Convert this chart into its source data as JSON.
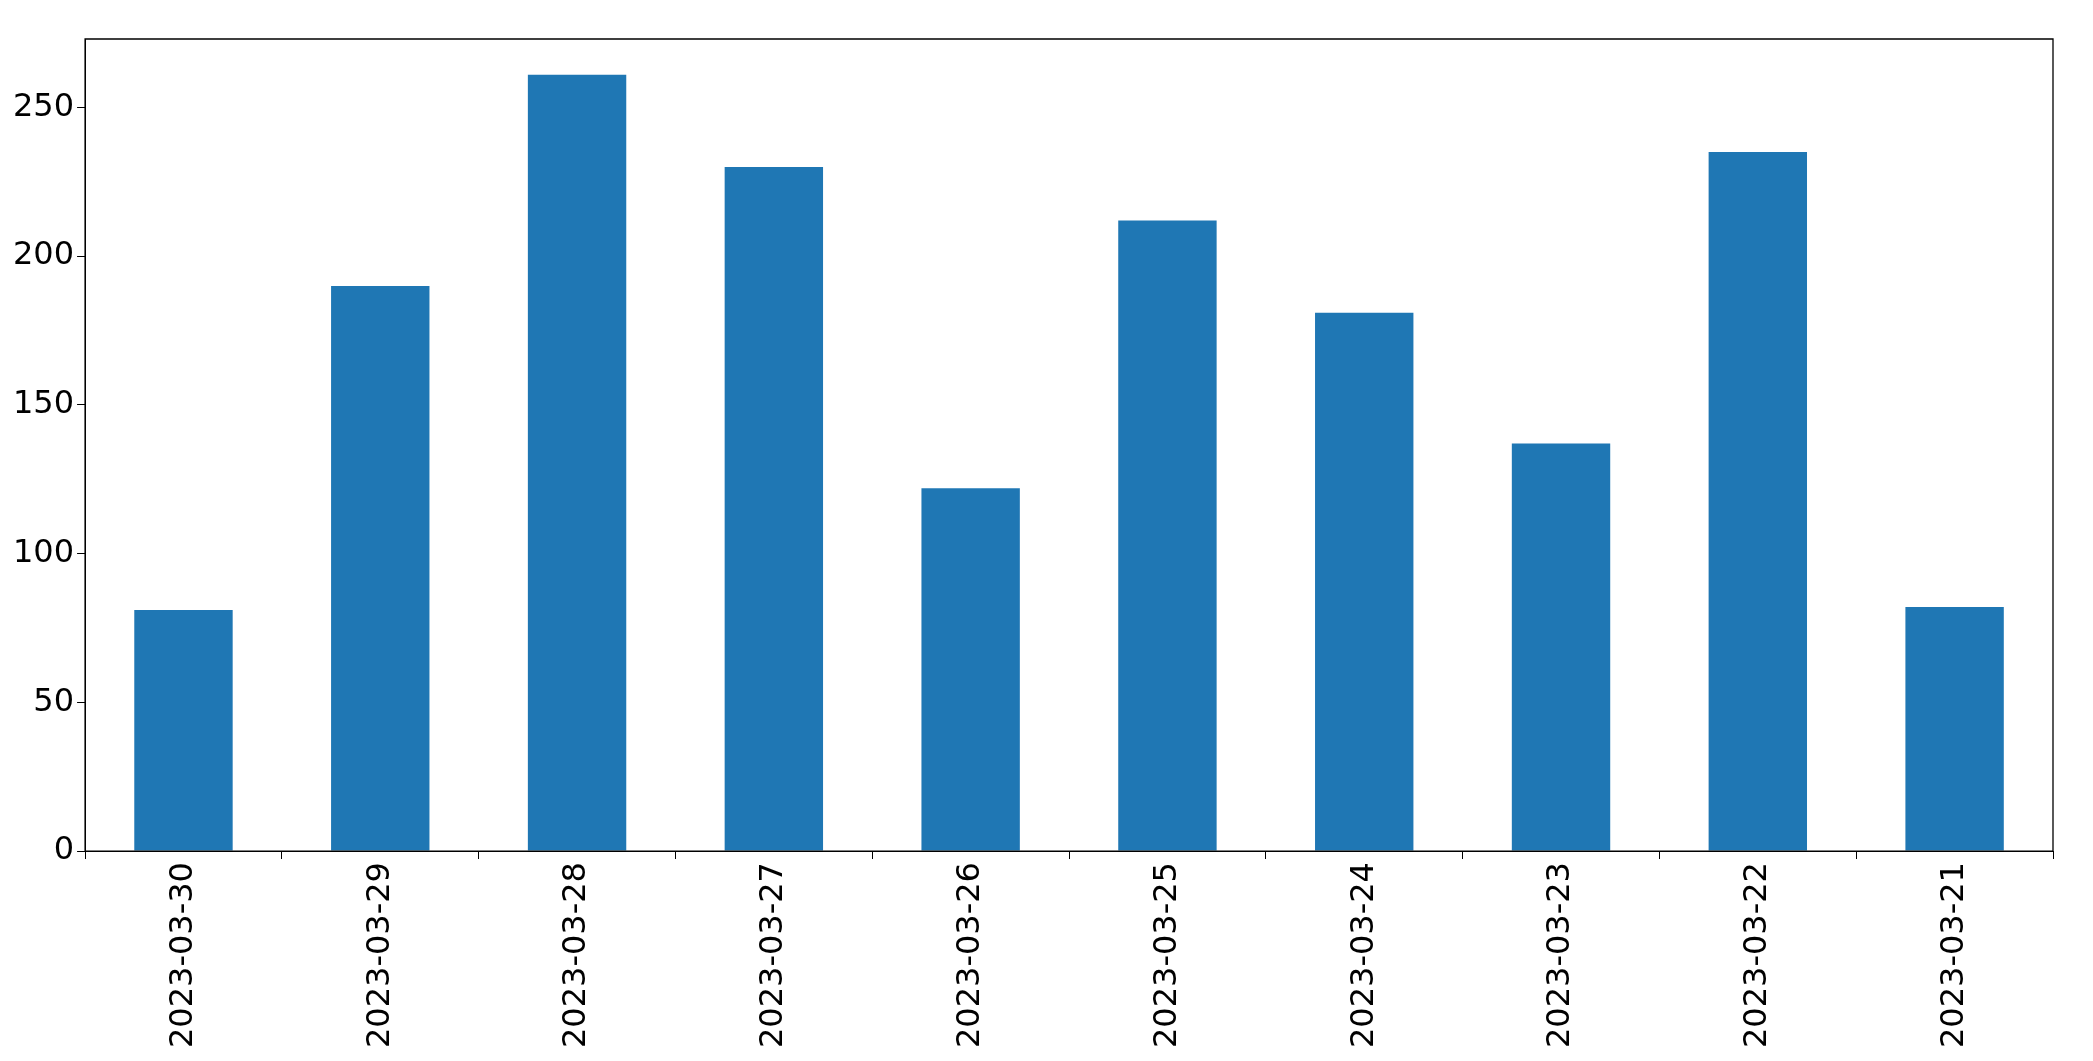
{
  "chart_data": {
    "type": "bar",
    "categories": [
      "2023-03-30",
      "2023-03-29",
      "2023-03-28",
      "2023-03-27",
      "2023-03-26",
      "2023-03-25",
      "2023-03-24",
      "2023-03-23",
      "2023-03-22",
      "2023-03-21"
    ],
    "values": [
      81,
      190,
      261,
      230,
      122,
      212,
      181,
      137,
      235,
      82
    ],
    "color": "#1f77b4",
    "ylim": [
      0,
      273
    ],
    "yticks": [
      0,
      50,
      100,
      150,
      200,
      250
    ],
    "grid": false,
    "legend": false
  }
}
